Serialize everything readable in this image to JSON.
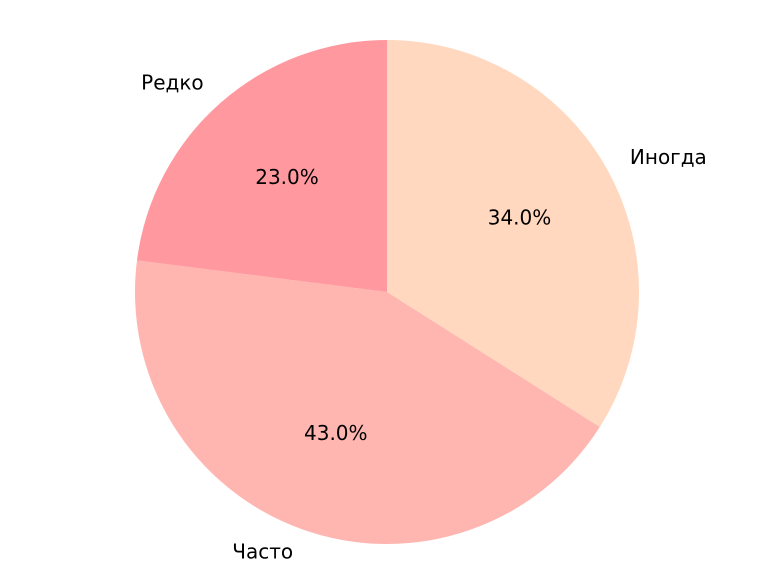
{
  "chart_data": {
    "type": "pie",
    "title": "",
    "start_angle_deg": 90,
    "direction": "clockwise",
    "slices": [
      {
        "label": "Иногда",
        "value": 34.0,
        "pct_label": "34.0%",
        "color": "#FFD8BF"
      },
      {
        "label": "Часто",
        "value": 43.0,
        "pct_label": "43.0%",
        "color": "#FFB6B1"
      },
      {
        "label": "Редко",
        "value": 23.0,
        "pct_label": "23.0%",
        "color": "#FF999F"
      }
    ]
  }
}
